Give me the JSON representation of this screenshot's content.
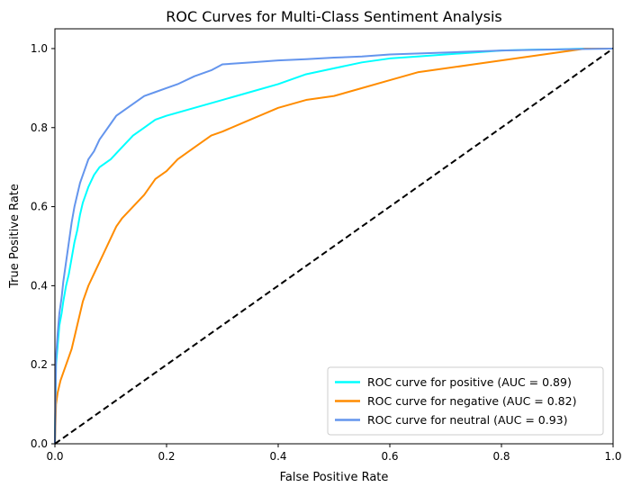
{
  "chart_data": {
    "type": "line",
    "title": "ROC Curves for Multi-Class Sentiment Analysis",
    "xlabel": "False Positive Rate",
    "ylabel": "True Positive Rate",
    "xlim": [
      0.0,
      1.0
    ],
    "ylim": [
      0.0,
      1.05
    ],
    "x_ticks": [
      0.0,
      0.2,
      0.4,
      0.6,
      0.8,
      1.0
    ],
    "x_tick_labels": [
      "0.0",
      "0.2",
      "0.4",
      "0.6",
      "0.8",
      "1.0"
    ],
    "y_ticks": [
      0.0,
      0.2,
      0.4,
      0.6,
      0.8,
      1.0
    ],
    "y_tick_labels": [
      "0.0",
      "0.2",
      "0.4",
      "0.6",
      "0.8",
      "1.0"
    ],
    "grid": false,
    "legend_position": "lower-right",
    "series": [
      {
        "name": "ROC curve for positive (AUC = 0.89)",
        "color": "#00ffff",
        "x": [
          0,
          0.002,
          0.005,
          0.008,
          0.012,
          0.015,
          0.02,
          0.025,
          0.03,
          0.035,
          0.04,
          0.045,
          0.05,
          0.055,
          0.06,
          0.07,
          0.08,
          0.09,
          0.1,
          0.12,
          0.14,
          0.16,
          0.18,
          0.2,
          0.25,
          0.3,
          0.35,
          0.4,
          0.45,
          0.5,
          0.55,
          0.6,
          0.65,
          0.7,
          0.75,
          0.8,
          0.85,
          0.9,
          0.95,
          1.0
        ],
        "y": [
          0,
          0.2,
          0.25,
          0.3,
          0.33,
          0.36,
          0.4,
          0.43,
          0.47,
          0.51,
          0.54,
          0.58,
          0.61,
          0.63,
          0.65,
          0.68,
          0.7,
          0.71,
          0.72,
          0.75,
          0.78,
          0.8,
          0.82,
          0.83,
          0.85,
          0.87,
          0.89,
          0.91,
          0.935,
          0.95,
          0.965,
          0.975,
          0.98,
          0.985,
          0.99,
          0.995,
          0.997,
          0.998,
          1.0,
          1.0
        ]
      },
      {
        "name": "ROC curve for negative (AUC = 0.82)",
        "color": "#ff8c00",
        "x": [
          0,
          0.002,
          0.005,
          0.01,
          0.015,
          0.02,
          0.025,
          0.03,
          0.035,
          0.04,
          0.045,
          0.05,
          0.06,
          0.07,
          0.08,
          0.09,
          0.1,
          0.11,
          0.12,
          0.14,
          0.16,
          0.18,
          0.2,
          0.22,
          0.25,
          0.28,
          0.3,
          0.35,
          0.4,
          0.45,
          0.5,
          0.55,
          0.6,
          0.65,
          0.7,
          0.75,
          0.8,
          0.85,
          0.9,
          0.95,
          1.0
        ],
        "y": [
          0,
          0.1,
          0.13,
          0.16,
          0.18,
          0.2,
          0.22,
          0.24,
          0.27,
          0.3,
          0.33,
          0.36,
          0.4,
          0.43,
          0.46,
          0.49,
          0.52,
          0.55,
          0.57,
          0.6,
          0.63,
          0.67,
          0.69,
          0.72,
          0.75,
          0.78,
          0.79,
          0.82,
          0.85,
          0.87,
          0.88,
          0.9,
          0.92,
          0.94,
          0.95,
          0.96,
          0.97,
          0.98,
          0.99,
          1.0,
          1.0
        ]
      },
      {
        "name": "ROC curve for neutral (AUC = 0.93)",
        "color": "#6495ed",
        "x": [
          0,
          0.002,
          0.005,
          0.008,
          0.012,
          0.015,
          0.02,
          0.025,
          0.03,
          0.035,
          0.04,
          0.045,
          0.05,
          0.055,
          0.06,
          0.07,
          0.08,
          0.09,
          0.1,
          0.11,
          0.12,
          0.13,
          0.14,
          0.15,
          0.16,
          0.18,
          0.2,
          0.22,
          0.25,
          0.28,
          0.3,
          0.35,
          0.4,
          0.45,
          0.5,
          0.55,
          0.6,
          0.7,
          0.8,
          0.9,
          1.0
        ],
        "y": [
          0,
          0.22,
          0.28,
          0.33,
          0.37,
          0.41,
          0.46,
          0.51,
          0.56,
          0.6,
          0.63,
          0.66,
          0.68,
          0.7,
          0.72,
          0.74,
          0.77,
          0.79,
          0.81,
          0.83,
          0.84,
          0.85,
          0.86,
          0.87,
          0.88,
          0.89,
          0.9,
          0.91,
          0.93,
          0.945,
          0.96,
          0.965,
          0.97,
          0.973,
          0.977,
          0.98,
          0.985,
          0.99,
          0.995,
          0.998,
          1.0
        ]
      },
      {
        "name": "",
        "color": "#000000",
        "dashed": true,
        "x": [
          0.0,
          1.0
        ],
        "y": [
          0.0,
          1.0
        ]
      }
    ]
  }
}
